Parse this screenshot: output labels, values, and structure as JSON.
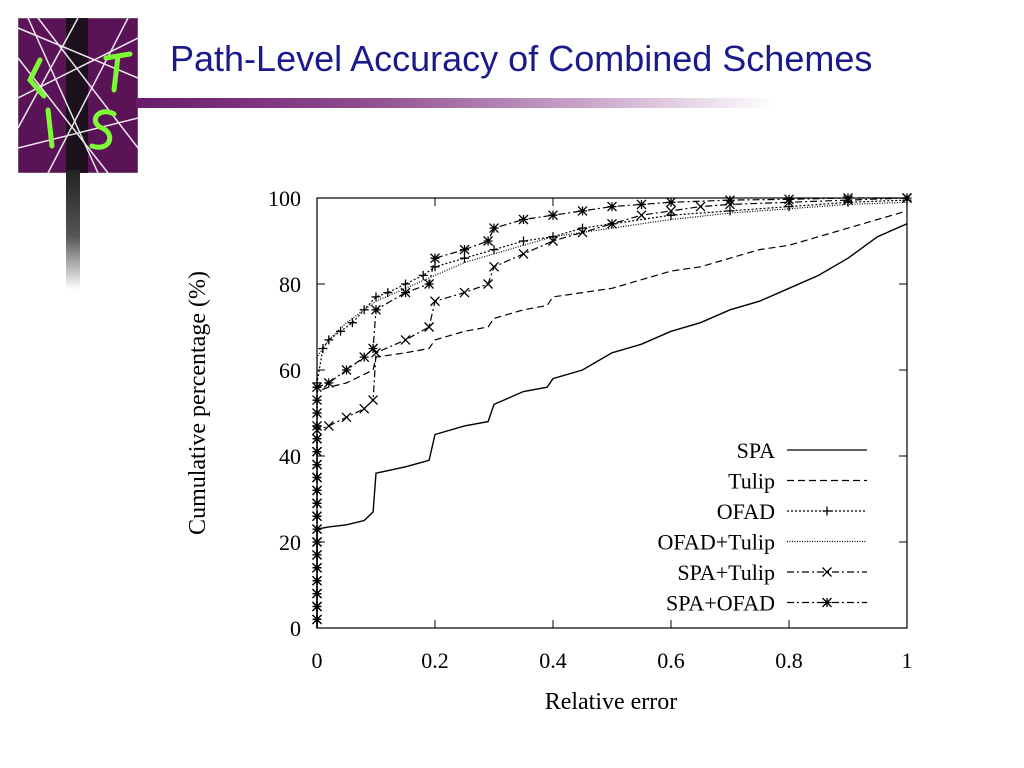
{
  "slide": {
    "title": "Path-Level Accuracy of Combined Schemes",
    "logo_icon": "lst-logo-icon"
  },
  "colors": {
    "title": "#1a1a8c",
    "accent_bar": "#6b1a6b",
    "logo_bg": "#5a1357",
    "logo_letters": "#7dfc36"
  },
  "chart_data": {
    "type": "line",
    "xlabel": "Relative error",
    "ylabel": "Cumulative percentage (%)",
    "xlim": [
      0,
      1
    ],
    "ylim": [
      0,
      100
    ],
    "xticks": [
      "0",
      "0.2",
      "0.4",
      "0.6",
      "0.8",
      "1"
    ],
    "yticks": [
      "0",
      "20",
      "40",
      "60",
      "80",
      "100"
    ],
    "grid": false,
    "legend_position": "bottom-right",
    "series": [
      {
        "name": "SPA",
        "style": "solid",
        "marker": "none",
        "x": [
          0,
          0.02,
          0.05,
          0.08,
          0.095,
          0.1,
          0.15,
          0.19,
          0.2,
          0.25,
          0.29,
          0.3,
          0.35,
          0.39,
          0.4,
          0.45,
          0.5,
          0.55,
          0.6,
          0.65,
          0.7,
          0.75,
          0.8,
          0.85,
          0.9,
          0.95,
          1.0
        ],
        "y": [
          23,
          23.5,
          24,
          25,
          27,
          36,
          37.5,
          39,
          45,
          47,
          48,
          52,
          55,
          56,
          58,
          60,
          64,
          66,
          69,
          71,
          74,
          76,
          79,
          82,
          86,
          91,
          94
        ]
      },
      {
        "name": "Tulip",
        "style": "dashed",
        "marker": "none",
        "x": [
          0,
          0.02,
          0.05,
          0.08,
          0.095,
          0.1,
          0.15,
          0.19,
          0.2,
          0.25,
          0.29,
          0.3,
          0.35,
          0.39,
          0.4,
          0.45,
          0.5,
          0.55,
          0.6,
          0.65,
          0.7,
          0.75,
          0.8,
          0.85,
          0.9,
          0.95,
          1.0
        ],
        "y": [
          55,
          56,
          57,
          59,
          60,
          63,
          64,
          65,
          67,
          69,
          70,
          72,
          74,
          75,
          77,
          78,
          79,
          81,
          83,
          84,
          86,
          88,
          89,
          91,
          93,
          95,
          97
        ]
      },
      {
        "name": "OFAD",
        "style": "dotted",
        "marker": "+",
        "x": [
          0,
          0.01,
          0.02,
          0.04,
          0.06,
          0.08,
          0.1,
          0.12,
          0.15,
          0.18,
          0.2,
          0.25,
          0.3,
          0.35,
          0.4,
          0.45,
          0.5,
          0.6,
          0.7,
          0.8,
          0.9,
          1.0
        ],
        "y": [
          57,
          65,
          67,
          69,
          71,
          74,
          77,
          78,
          80,
          82,
          84,
          86,
          88,
          90,
          91,
          93,
          94,
          96,
          97,
          98,
          99,
          99.5
        ]
      },
      {
        "name": "OFAD+Tulip",
        "style": "fine-dotted",
        "marker": "none",
        "x": [
          0,
          0.02,
          0.05,
          0.1,
          0.15,
          0.2,
          0.25,
          0.3,
          0.35,
          0.4,
          0.5,
          0.6,
          0.7,
          0.8,
          0.9,
          1.0
        ],
        "y": [
          63,
          67,
          71,
          76,
          79,
          82,
          85,
          87,
          89,
          91,
          93,
          95,
          96.5,
          97.5,
          98.5,
          99
        ]
      },
      {
        "name": "SPA+Tulip",
        "style": "dash-dot",
        "marker": "x",
        "x": [
          0,
          0.02,
          0.05,
          0.08,
          0.095,
          0.1,
          0.15,
          0.19,
          0.2,
          0.25,
          0.29,
          0.3,
          0.35,
          0.4,
          0.45,
          0.5,
          0.55,
          0.6,
          0.65,
          0.7,
          0.8,
          0.9,
          1.0
        ],
        "y": [
          46,
          47,
          49,
          51,
          53,
          64,
          67,
          70,
          76,
          78,
          80,
          84,
          87,
          90,
          92,
          94,
          96,
          97,
          98,
          98.5,
          99,
          99.5,
          100
        ]
      },
      {
        "name": "SPA+OFAD",
        "style": "dash-dot",
        "marker": "*",
        "x": [
          0,
          0.02,
          0.05,
          0.08,
          0.095,
          0.1,
          0.15,
          0.19,
          0.2,
          0.25,
          0.29,
          0.3,
          0.35,
          0.4,
          0.45,
          0.5,
          0.55,
          0.6,
          0.7,
          0.8,
          0.9,
          1.0
        ],
        "y": [
          56,
          57,
          60,
          63,
          65,
          74,
          78,
          80,
          86,
          88,
          90,
          93,
          95,
          96,
          97,
          98,
          98.5,
          99,
          99.5,
          99.7,
          100,
          100
        ]
      }
    ]
  }
}
